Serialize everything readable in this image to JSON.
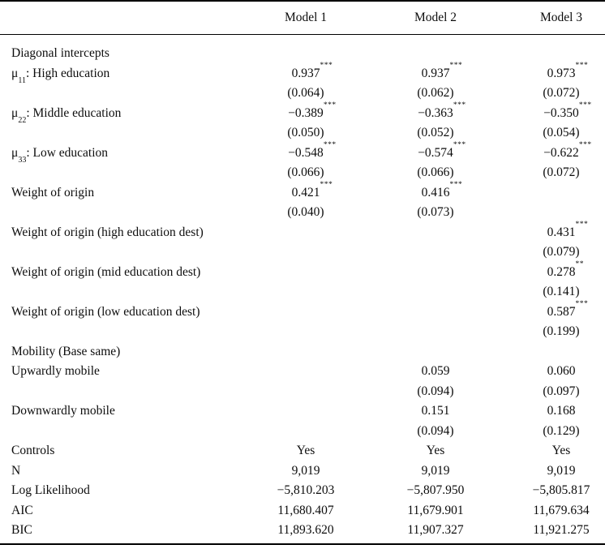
{
  "table": {
    "column_headers": [
      "Model 1",
      "Model 2",
      "Model 3"
    ],
    "notes": {
      "subscript_marker": "text between ~ is subscript",
      "star_marker": "text after ^ is superscript significance stars"
    },
    "rows": [
      {
        "label": "Diagonal intercepts",
        "cells": [
          "",
          "",
          ""
        ]
      },
      {
        "label": "μ~11~: High education",
        "cells": [
          "0.937^***",
          "0.937^***",
          "0.973^***"
        ]
      },
      {
        "label": "",
        "cells": [
          "(0.064)",
          "(0.062)",
          "(0.072)"
        ]
      },
      {
        "label": "μ~22~: Middle education",
        "cells": [
          "−0.389^***",
          "−0.363^***",
          "−0.350^***"
        ]
      },
      {
        "label": "",
        "cells": [
          "(0.050)",
          "(0.052)",
          "(0.054)"
        ]
      },
      {
        "label": "μ~33~: Low education",
        "cells": [
          "−0.548^***",
          "−0.574^***",
          "−0.622^***"
        ]
      },
      {
        "label": "",
        "cells": [
          "(0.066)",
          "(0.066)",
          "(0.072)"
        ]
      },
      {
        "label": "Weight of origin",
        "cells": [
          "0.421^***",
          "0.416^***",
          ""
        ]
      },
      {
        "label": "",
        "cells": [
          "(0.040)",
          "(0.073)",
          ""
        ]
      },
      {
        "label": "Weight of origin (high education dest)",
        "cells": [
          "",
          "",
          "0.431^***"
        ]
      },
      {
        "label": "",
        "cells": [
          "",
          "",
          "(0.079)"
        ]
      },
      {
        "label": "Weight of origin (mid education dest)",
        "cells": [
          "",
          "",
          "0.278^**"
        ]
      },
      {
        "label": "",
        "cells": [
          "",
          "",
          "(0.141)"
        ]
      },
      {
        "label": "Weight of origin (low education dest)",
        "cells": [
          "",
          "",
          "0.587^***"
        ]
      },
      {
        "label": "",
        "cells": [
          "",
          "",
          "(0.199)"
        ]
      },
      {
        "label": "Mobility (Base same)",
        "cells": [
          "",
          "",
          ""
        ]
      },
      {
        "label": "Upwardly mobile",
        "cells": [
          "",
          "0.059",
          "0.060"
        ]
      },
      {
        "label": "",
        "cells": [
          "",
          "(0.094)",
          "(0.097)"
        ]
      },
      {
        "label": "Downwardly mobile",
        "cells": [
          "",
          "0.151",
          "0.168"
        ]
      },
      {
        "label": "",
        "cells": [
          "",
          "(0.094)",
          "(0.129)"
        ]
      },
      {
        "label": "Controls",
        "cells": [
          "Yes",
          "Yes",
          "Yes"
        ]
      },
      {
        "label": "N",
        "cells": [
          "9,019",
          "9,019",
          "9,019"
        ]
      },
      {
        "label": "Log Likelihood",
        "cells": [
          "−5,810.203",
          "−5,807.950",
          "−5,805.817"
        ]
      },
      {
        "label": "AIC",
        "cells": [
          "11,680.407",
          "11,679.901",
          "11,679.634"
        ]
      },
      {
        "label": "BIC",
        "cells": [
          "11,893.620",
          "11,907.327",
          "11,921.275"
        ]
      }
    ]
  }
}
